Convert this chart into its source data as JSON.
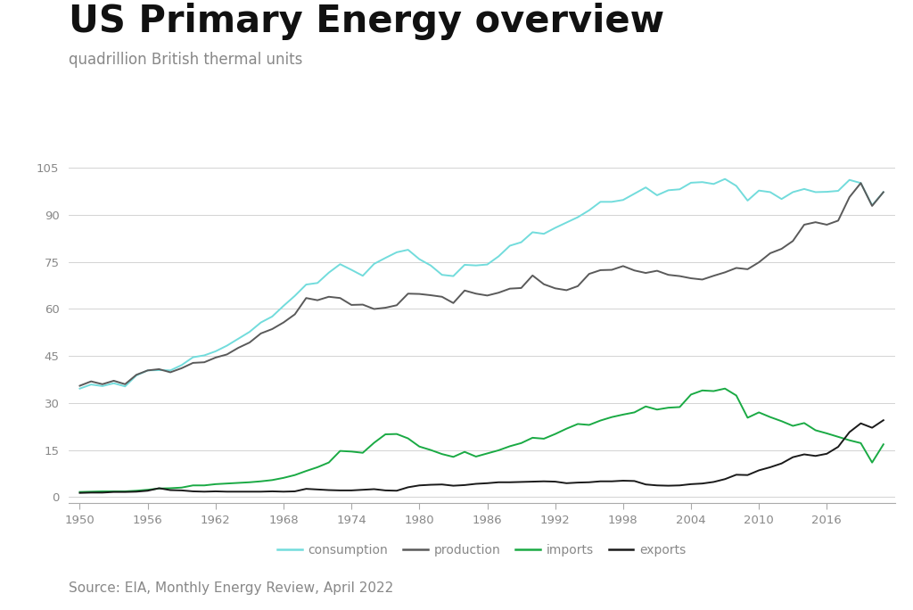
{
  "title": "US Primary Energy overview",
  "subtitle": "quadrillion British thermal units",
  "source": "Source: EIA, Monthly Energy Review, April 2022",
  "background_color": "#ffffff",
  "title_fontsize": 30,
  "subtitle_fontsize": 12,
  "source_fontsize": 11,
  "ylim": [
    -2,
    108
  ],
  "yticks": [
    0,
    15,
    30,
    45,
    60,
    75,
    90,
    105
  ],
  "years": [
    1950,
    1951,
    1952,
    1953,
    1954,
    1955,
    1956,
    1957,
    1958,
    1959,
    1960,
    1961,
    1962,
    1963,
    1964,
    1965,
    1966,
    1967,
    1968,
    1969,
    1970,
    1971,
    1972,
    1973,
    1974,
    1975,
    1976,
    1977,
    1978,
    1979,
    1980,
    1981,
    1982,
    1983,
    1984,
    1985,
    1986,
    1987,
    1988,
    1989,
    1990,
    1991,
    1992,
    1993,
    1994,
    1995,
    1996,
    1997,
    1998,
    1999,
    2000,
    2001,
    2002,
    2003,
    2004,
    2005,
    2006,
    2007,
    2008,
    2009,
    2010,
    2011,
    2012,
    2013,
    2014,
    2015,
    2016,
    2017,
    2018,
    2019,
    2020,
    2021
  ],
  "consumption": [
    34.6,
    35.9,
    35.4,
    36.3,
    35.3,
    38.8,
    40.4,
    40.5,
    40.4,
    42.1,
    44.6,
    45.2,
    46.5,
    48.3,
    50.5,
    52.7,
    55.7,
    57.6,
    61.0,
    64.2,
    67.8,
    68.3,
    71.6,
    74.3,
    72.5,
    70.6,
    74.4,
    76.3,
    78.1,
    78.9,
    75.9,
    73.9,
    70.9,
    70.5,
    74.1,
    73.9,
    74.2,
    76.8,
    80.2,
    81.3,
    84.5,
    84.0,
    85.9,
    87.6,
    89.3,
    91.5,
    94.2,
    94.2,
    94.8,
    96.8,
    98.8,
    96.3,
    97.9,
    98.2,
    100.3,
    100.5,
    99.9,
    101.5,
    99.3,
    94.6,
    97.8,
    97.3,
    95.1,
    97.3,
    98.3,
    97.3,
    97.4,
    97.7,
    101.2,
    100.2,
    93.1,
    97.3
  ],
  "production": [
    35.5,
    36.9,
    36.0,
    37.1,
    36.0,
    39.0,
    40.4,
    40.8,
    39.8,
    41.1,
    42.8,
    43.0,
    44.5,
    45.5,
    47.6,
    49.3,
    52.2,
    53.6,
    55.7,
    58.3,
    63.5,
    62.8,
    63.9,
    63.5,
    61.3,
    61.4,
    60.0,
    60.4,
    61.2,
    64.9,
    64.8,
    64.4,
    63.9,
    61.9,
    65.9,
    64.9,
    64.3,
    65.2,
    66.5,
    66.7,
    70.7,
    67.9,
    66.6,
    66.0,
    67.3,
    71.2,
    72.4,
    72.5,
    73.7,
    72.3,
    71.5,
    72.2,
    70.9,
    70.5,
    69.8,
    69.4,
    70.6,
    71.7,
    73.1,
    72.7,
    74.9,
    77.8,
    79.2,
    81.7,
    86.9,
    87.7,
    86.9,
    88.2,
    95.7,
    100.2,
    92.9,
    97.3
  ],
  "imports": [
    1.6,
    1.7,
    1.8,
    1.8,
    1.8,
    2.0,
    2.3,
    2.7,
    2.8,
    3.0,
    3.7,
    3.7,
    4.1,
    4.3,
    4.5,
    4.7,
    5.0,
    5.4,
    6.1,
    7.0,
    8.3,
    9.5,
    11.0,
    14.7,
    14.5,
    14.1,
    17.3,
    20.0,
    20.1,
    18.7,
    16.1,
    15.0,
    13.7,
    12.8,
    14.4,
    12.9,
    13.9,
    14.9,
    16.2,
    17.2,
    18.9,
    18.6,
    20.1,
    21.8,
    23.3,
    23.0,
    24.4,
    25.5,
    26.3,
    27.0,
    28.9,
    27.9,
    28.5,
    28.7,
    32.7,
    34.0,
    33.8,
    34.6,
    32.4,
    25.3,
    27.0,
    25.5,
    24.2,
    22.7,
    23.6,
    21.3,
    20.3,
    19.2,
    18.1,
    17.2,
    11.0,
    16.8
  ],
  "exports": [
    1.3,
    1.4,
    1.4,
    1.6,
    1.6,
    1.7,
    2.0,
    2.8,
    2.2,
    2.1,
    1.8,
    1.7,
    1.8,
    1.7,
    1.7,
    1.7,
    1.7,
    1.8,
    1.7,
    1.8,
    2.6,
    2.4,
    2.2,
    2.1,
    2.1,
    2.3,
    2.5,
    2.1,
    2.0,
    3.1,
    3.7,
    3.9,
    4.0,
    3.6,
    3.8,
    4.2,
    4.4,
    4.7,
    4.7,
    4.8,
    4.9,
    5.0,
    4.9,
    4.4,
    4.6,
    4.7,
    5.0,
    5.0,
    5.2,
    5.1,
    4.0,
    3.7,
    3.6,
    3.7,
    4.1,
    4.3,
    4.8,
    5.7,
    7.1,
    7.0,
    8.5,
    9.5,
    10.7,
    12.7,
    13.6,
    13.1,
    13.8,
    16.0,
    20.7,
    23.5,
    22.1,
    24.5
  ],
  "consumption_color": "#72DCDC",
  "production_color": "#5a5a5a",
  "imports_color": "#1aaa44",
  "exports_color": "#1a1a1a",
  "grid_color": "#cccccc",
  "tick_label_color": "#888888",
  "xticks": [
    1950,
    1956,
    1962,
    1968,
    1974,
    1980,
    1986,
    1992,
    1998,
    2004,
    2010,
    2016
  ],
  "legend_labels": [
    "consumption",
    "production",
    "imports",
    "exports"
  ]
}
